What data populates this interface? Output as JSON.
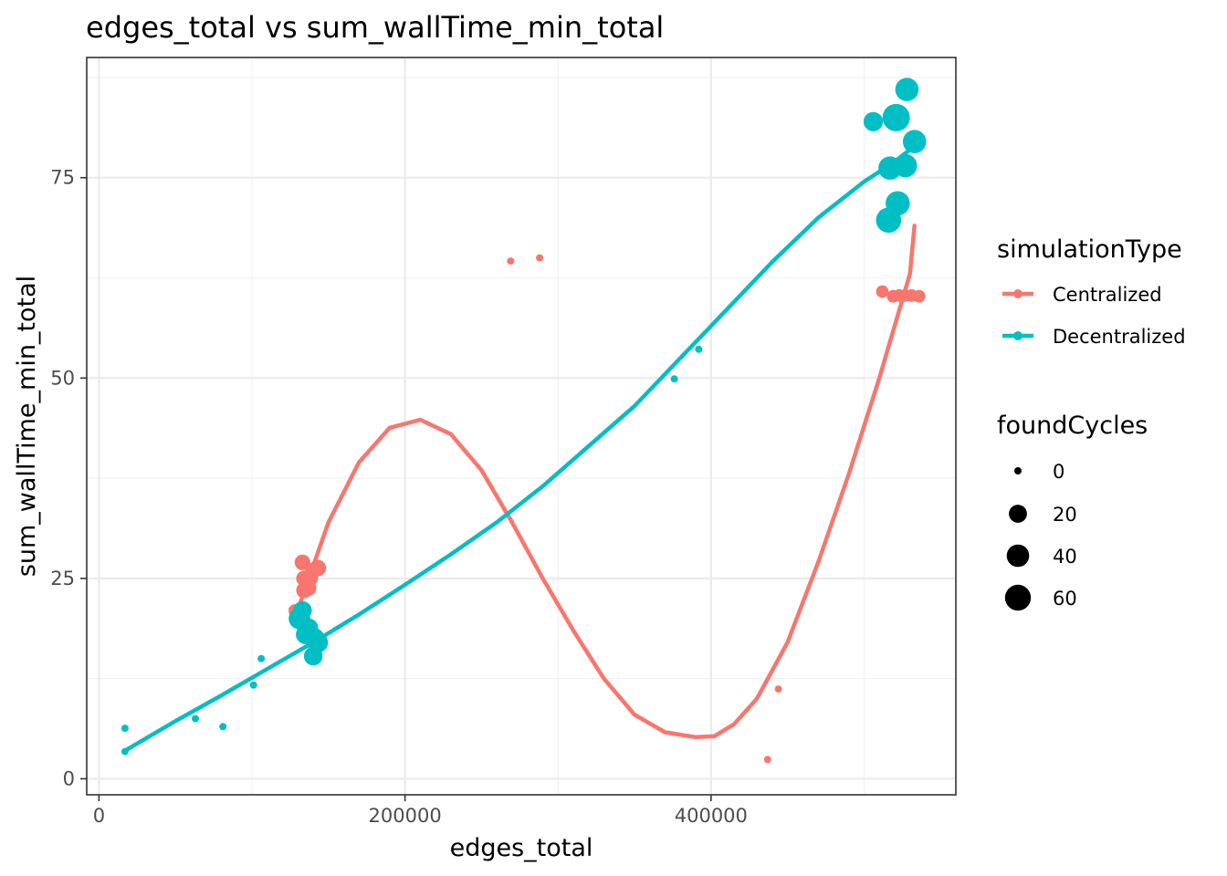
{
  "chart_data": {
    "type": "scatter",
    "title": "edges_total  vs  sum_wallTime_min_total",
    "xlabel": "edges_total",
    "ylabel": "sum_wallTime_min_total",
    "xlim": [
      -8000,
      560000
    ],
    "ylim": [
      -2,
      90
    ],
    "x_ticks": [
      0,
      200000,
      400000
    ],
    "x_tick_labels": [
      "0",
      "200000",
      "400000"
    ],
    "y_ticks": [
      0,
      25,
      50,
      75
    ],
    "y_tick_labels": [
      "0",
      "25",
      "50",
      "75"
    ],
    "grid": true,
    "legend": {
      "position": "right",
      "color_title": "simulationType",
      "size_title": "foundCycles",
      "size_entries": [
        {
          "label": "0",
          "value": 0
        },
        {
          "label": "20",
          "value": 20
        },
        {
          "label": "40",
          "value": 40
        },
        {
          "label": "60",
          "value": 60
        }
      ]
    },
    "series": [
      {
        "name": "Centralized",
        "color": "#F8766D",
        "points": [
          {
            "x": 128000,
            "y": 21.0,
            "size": 5
          },
          {
            "x": 133000,
            "y": 27.0,
            "size": 12
          },
          {
            "x": 134000,
            "y": 25.0,
            "size": 12
          },
          {
            "x": 134000,
            "y": 23.5,
            "size": 12
          },
          {
            "x": 137000,
            "y": 23.8,
            "size": 12
          },
          {
            "x": 138000,
            "y": 25.0,
            "size": 12
          },
          {
            "x": 140000,
            "y": 26.0,
            "size": 12
          },
          {
            "x": 143000,
            "y": 26.3,
            "size": 15
          },
          {
            "x": 269000,
            "y": 64.6,
            "size": 0
          },
          {
            "x": 288000,
            "y": 65.0,
            "size": 0
          },
          {
            "x": 437000,
            "y": 2.4,
            "size": 0
          },
          {
            "x": 444000,
            "y": 11.2,
            "size": 0
          },
          {
            "x": 512000,
            "y": 60.8,
            "size": 5
          },
          {
            "x": 519000,
            "y": 60.2,
            "size": 5
          },
          {
            "x": 523000,
            "y": 60.3,
            "size": 5
          },
          {
            "x": 527000,
            "y": 60.3,
            "size": 5
          },
          {
            "x": 531000,
            "y": 60.3,
            "size": 5
          },
          {
            "x": 536000,
            "y": 60.2,
            "size": 5
          }
        ],
        "trend": {
          "x": [
            128000,
            150000,
            170000,
            190000,
            210000,
            230000,
            250000,
            270000,
            290000,
            310000,
            330000,
            350000,
            370000,
            390000,
            402000,
            415000,
            430000,
            450000,
            470000,
            490000,
            510000,
            530000,
            533000
          ],
          "y": [
            20.0,
            32.0,
            39.5,
            43.8,
            44.8,
            43.0,
            38.5,
            32.0,
            25.0,
            18.5,
            12.5,
            8.0,
            5.8,
            5.2,
            5.3,
            6.8,
            10.0,
            17.0,
            27.0,
            38.0,
            50.0,
            63.0,
            69.0
          ]
        }
      },
      {
        "name": "Decentralized",
        "color": "#00BFC4",
        "points": [
          {
            "x": 17000,
            "y": 6.3,
            "size": 0
          },
          {
            "x": 17000,
            "y": 3.4,
            "size": 0
          },
          {
            "x": 63000,
            "y": 7.5,
            "size": 0
          },
          {
            "x": 81000,
            "y": 6.5,
            "size": 0
          },
          {
            "x": 101000,
            "y": 11.7,
            "size": 0
          },
          {
            "x": 106000,
            "y": 15.0,
            "size": 0
          },
          {
            "x": 131000,
            "y": 20.0,
            "size": 35
          },
          {
            "x": 133000,
            "y": 21.0,
            "size": 22
          },
          {
            "x": 135000,
            "y": 18.0,
            "size": 25
          },
          {
            "x": 137000,
            "y": 18.8,
            "size": 25
          },
          {
            "x": 140000,
            "y": 15.3,
            "size": 22
          },
          {
            "x": 141000,
            "y": 17.5,
            "size": 28
          },
          {
            "x": 143000,
            "y": 17.0,
            "size": 30
          },
          {
            "x": 376000,
            "y": 49.9,
            "size": 0
          },
          {
            "x": 392000,
            "y": 53.6,
            "size": 0
          },
          {
            "x": 506000,
            "y": 82.0,
            "size": 25
          },
          {
            "x": 516000,
            "y": 69.7,
            "size": 55
          },
          {
            "x": 517000,
            "y": 76.2,
            "size": 45
          },
          {
            "x": 521000,
            "y": 82.5,
            "size": 70
          },
          {
            "x": 522000,
            "y": 71.8,
            "size": 50
          },
          {
            "x": 527000,
            "y": 76.5,
            "size": 45
          },
          {
            "x": 528000,
            "y": 86.0,
            "size": 45
          },
          {
            "x": 533000,
            "y": 79.5,
            "size": 45
          }
        ],
        "trend": {
          "x": [
            17000,
            50000,
            80000,
            110000,
            140000,
            170000,
            200000,
            230000,
            260000,
            290000,
            320000,
            350000,
            380000,
            410000,
            440000,
            470000,
            500000,
            520000,
            530000
          ],
          "y": [
            3.5,
            7.2,
            10.4,
            13.7,
            17.0,
            20.5,
            24.2,
            28.0,
            32.0,
            36.5,
            41.5,
            46.5,
            52.5,
            58.5,
            64.5,
            70.0,
            74.5,
            77.0,
            78.5
          ]
        }
      }
    ]
  }
}
